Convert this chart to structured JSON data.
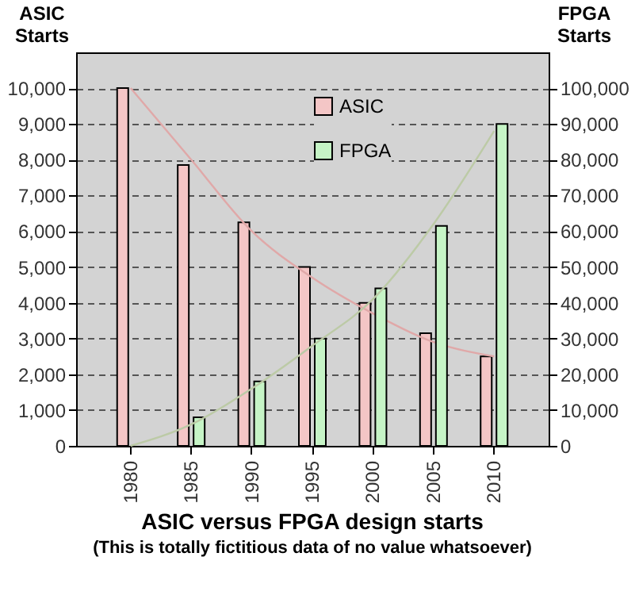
{
  "chart_data": {
    "type": "bar",
    "title": "ASIC versus FPGA design starts",
    "subtitle": "(This is totally fictitious data of no value whatsoever)",
    "ylabel": "ASIC Starts",
    "y2label": "FPGA Starts",
    "categories": [
      "1980",
      "1985",
      "1990",
      "1995",
      "2000",
      "2005",
      "2010"
    ],
    "series": [
      {
        "name": "ASIC",
        "color": "#f4c6c6",
        "values": [
          10000,
          7850,
          6250,
          5000,
          4000,
          3150,
          2500
        ]
      },
      {
        "name": "FPGA",
        "color": "#c6f4c6",
        "axis": "y2",
        "values": [
          null,
          8000,
          18000,
          30000,
          44000,
          61500,
          90000
        ]
      },
      {
        "type": "line",
        "color": "#e0a8a8",
        "values": [
          10000,
          8000,
          6000,
          4700,
          3700,
          2900,
          2500
        ]
      },
      {
        "type": "line",
        "color": "#bccaa6",
        "axis": "y2",
        "values": [
          0,
          6000,
          16000,
          28000,
          41000,
          62000,
          88000
        ]
      }
    ],
    "ylim": [
      0,
      11000
    ],
    "yticks": [
      0,
      {
        "value": 1000,
        "label": "1,000"
      },
      {
        "value": 2000,
        "label": "2,000"
      },
      {
        "value": 3000,
        "label": "3,000"
      },
      {
        "value": 4000,
        "label": "4,000"
      },
      {
        "value": 5000,
        "label": "5,000"
      },
      {
        "value": 6000,
        "label": "6,000"
      },
      {
        "value": 7000,
        "label": "7,000"
      },
      {
        "value": 8000,
        "label": "8,000"
      },
      {
        "value": 9000,
        "label": "9,000"
      },
      {
        "value": 10000,
        "label": "10,000"
      }
    ],
    "y2lim": [
      0,
      110000
    ],
    "y2ticks": [
      0,
      {
        "value": 10000,
        "label": "10,000"
      },
      {
        "value": 20000,
        "label": "20,000"
      },
      {
        "value": 30000,
        "label": "30,000"
      },
      {
        "value": 40000,
        "label": "40,000"
      },
      {
        "value": 50000,
        "label": "50,000"
      },
      {
        "value": 60000,
        "label": "60,000"
      },
      {
        "value": 70000,
        "label": "70,000"
      },
      {
        "value": 80000,
        "label": "80,000"
      },
      {
        "value": 90000,
        "label": "90,000"
      },
      {
        "value": 100000,
        "label": "100,000"
      }
    ],
    "grid": "y",
    "legend": "top"
  }
}
